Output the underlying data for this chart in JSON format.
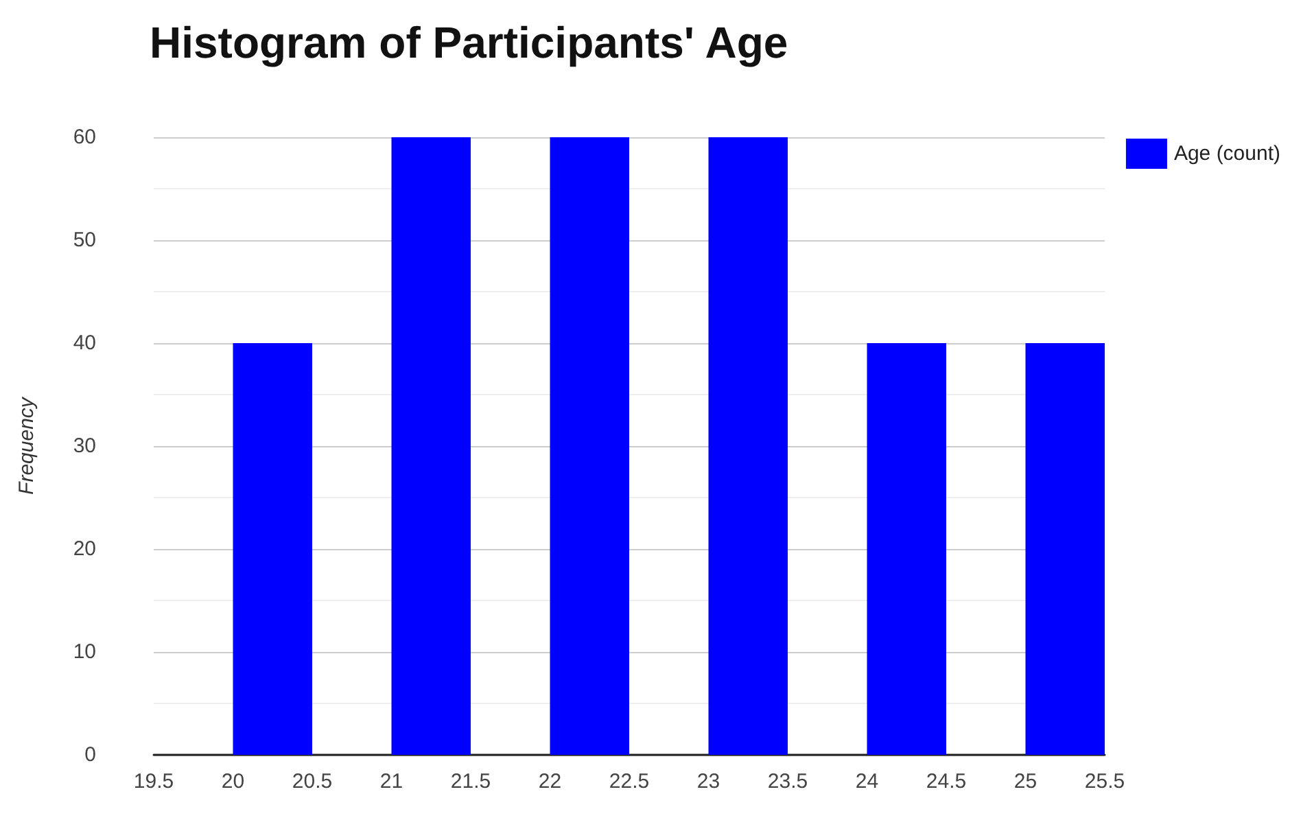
{
  "chart_data": {
    "type": "histogram",
    "title": "Histogram of Participants' Age",
    "ylabel": "Frequency",
    "bins": [
      19.5,
      20,
      20.5,
      21,
      21.5,
      22,
      22.5,
      23,
      23.5,
      24,
      24.5,
      25,
      25.5
    ],
    "series": [
      {
        "name": "Age (count)",
        "color": "#0000ff",
        "values": [
          0,
          40,
          0,
          60,
          0,
          60,
          0,
          60,
          0,
          40,
          0,
          40
        ]
      }
    ],
    "xlim": [
      19.5,
      25.5
    ],
    "xticks": [
      19.5,
      20,
      20.5,
      21,
      21.5,
      22,
      22.5,
      23,
      23.5,
      24,
      24.5,
      25,
      25.5
    ],
    "ylim": [
      0,
      60
    ],
    "yticks": [
      0,
      10,
      20,
      30,
      40,
      50,
      60
    ],
    "grid": "y",
    "legend": "top right"
  }
}
